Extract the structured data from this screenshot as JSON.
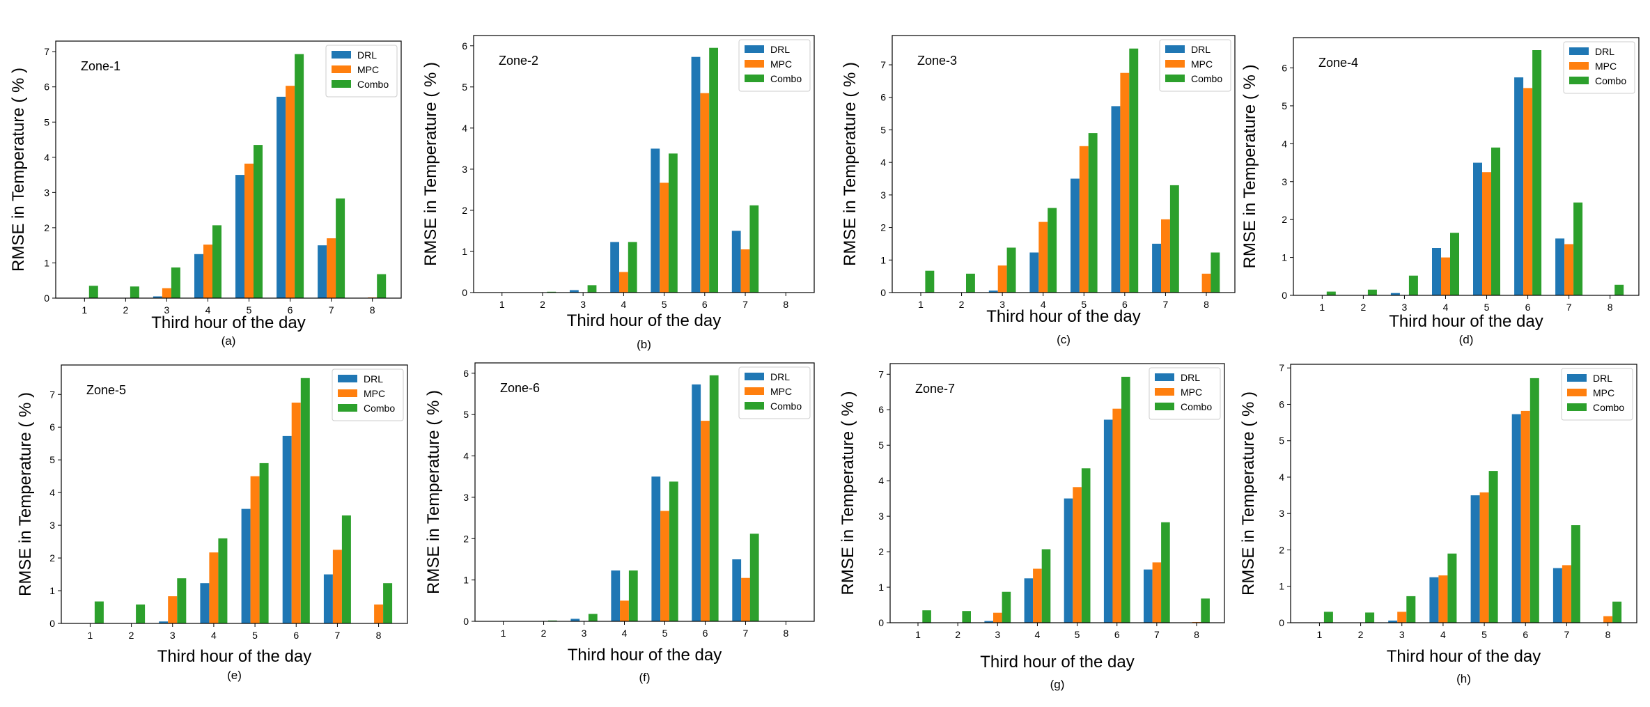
{
  "figure": {
    "series_names": [
      "DRL",
      "MPC",
      "Combo"
    ],
    "colors": {
      "DRL": "#1f77b4",
      "MPC": "#ff7f0e",
      "Combo": "#2ca02c"
    }
  },
  "chart_data": [
    {
      "type": "bar",
      "caption": "(a)",
      "zone_label": "Zone-1",
      "xlabel": "Third hour of the day",
      "ylabel": "RMSE in Temperature ( % )",
      "categories": [
        "1",
        "2",
        "3",
        "4",
        "5",
        "6",
        "7",
        "8"
      ],
      "ylim": [
        0,
        7.3
      ],
      "yticks": [
        0,
        1,
        2,
        3,
        4,
        5,
        6,
        7
      ],
      "legend": "top-right",
      "series": [
        {
          "name": "DRL",
          "values": [
            0,
            0,
            0.05,
            1.25,
            3.5,
            5.72,
            1.5,
            0
          ]
        },
        {
          "name": "MPC",
          "values": [
            0,
            0,
            0.28,
            1.52,
            3.82,
            6.03,
            1.7,
            0.02
          ]
        },
        {
          "name": "Combo",
          "values": [
            0.35,
            0.33,
            0.87,
            2.07,
            4.35,
            6.93,
            2.83,
            0.68
          ]
        }
      ]
    },
    {
      "type": "bar",
      "caption": "(b)",
      "zone_label": "Zone-2",
      "xlabel": "Third hour of the day",
      "ylabel": "RMSE in Temperature ( % )",
      "categories": [
        "1",
        "2",
        "3",
        "4",
        "5",
        "6",
        "7",
        "8"
      ],
      "ylim": [
        0,
        6.25
      ],
      "yticks": [
        0,
        1,
        2,
        3,
        4,
        5,
        6
      ],
      "legend": "top-right",
      "series": [
        {
          "name": "DRL",
          "values": [
            0,
            0,
            0.06,
            1.23,
            3.5,
            5.73,
            1.5,
            0
          ]
        },
        {
          "name": "MPC",
          "values": [
            0,
            0,
            0,
            0.5,
            2.67,
            4.85,
            1.05,
            0
          ]
        },
        {
          "name": "Combo",
          "values": [
            0,
            0.02,
            0.18,
            1.23,
            3.38,
            5.95,
            2.12,
            0
          ]
        }
      ]
    },
    {
      "type": "bar",
      "caption": "(c)",
      "zone_label": "Zone-3",
      "xlabel": "Third hour of the day",
      "ylabel": "RMSE in Temperature ( % )",
      "categories": [
        "1",
        "2",
        "3",
        "4",
        "5",
        "6",
        "7",
        "8"
      ],
      "ylim": [
        0,
        7.9
      ],
      "yticks": [
        0,
        1,
        2,
        3,
        4,
        5,
        6,
        7
      ],
      "legend": "top-right",
      "series": [
        {
          "name": "DRL",
          "values": [
            0,
            0,
            0.06,
            1.23,
            3.5,
            5.73,
            1.5,
            0
          ]
        },
        {
          "name": "MPC",
          "values": [
            0,
            0,
            0.83,
            2.17,
            4.5,
            6.75,
            2.25,
            0.58
          ]
        },
        {
          "name": "Combo",
          "values": [
            0.67,
            0.58,
            1.38,
            2.6,
            4.9,
            7.5,
            3.3,
            1.23
          ]
        }
      ]
    },
    {
      "type": "bar",
      "caption": "(d)",
      "zone_label": "Zone-4",
      "xlabel": "Third hour of the day",
      "ylabel": "RMSE in Temperature ( % )",
      "categories": [
        "1",
        "2",
        "3",
        "4",
        "5",
        "6",
        "7",
        "8"
      ],
      "ylim": [
        0,
        6.8
      ],
      "yticks": [
        0,
        1,
        2,
        3,
        4,
        5,
        6
      ],
      "legend": "top-right",
      "series": [
        {
          "name": "DRL",
          "values": [
            0,
            0,
            0.06,
            1.25,
            3.5,
            5.75,
            1.5,
            0
          ]
        },
        {
          "name": "MPC",
          "values": [
            0,
            0,
            0,
            1.0,
            3.25,
            5.47,
            1.35,
            0
          ]
        },
        {
          "name": "Combo",
          "values": [
            0.1,
            0.15,
            0.52,
            1.65,
            3.9,
            6.47,
            2.45,
            0.28
          ]
        }
      ]
    },
    {
      "type": "bar",
      "caption": "(e)",
      "zone_label": "Zone-5",
      "xlabel": "Third hour of the day",
      "ylabel": "RMSE in Temperature ( % )",
      "categories": [
        "1",
        "2",
        "3",
        "4",
        "5",
        "6",
        "7",
        "8"
      ],
      "ylim": [
        0,
        7.9
      ],
      "yticks": [
        0,
        1,
        2,
        3,
        4,
        5,
        6,
        7
      ],
      "legend": "top-right",
      "series": [
        {
          "name": "DRL",
          "values": [
            0,
            0,
            0.06,
            1.23,
            3.5,
            5.73,
            1.5,
            0
          ]
        },
        {
          "name": "MPC",
          "values": [
            0,
            0,
            0.83,
            2.17,
            4.5,
            6.75,
            2.25,
            0.58
          ]
        },
        {
          "name": "Combo",
          "values": [
            0.67,
            0.58,
            1.38,
            2.6,
            4.9,
            7.5,
            3.3,
            1.23
          ]
        }
      ]
    },
    {
      "type": "bar",
      "caption": "(f)",
      "zone_label": "Zone-6",
      "xlabel": "Third hour of the day",
      "ylabel": "RMSE in Temperature ( % )",
      "categories": [
        "1",
        "2",
        "3",
        "4",
        "5",
        "6",
        "7",
        "8"
      ],
      "ylim": [
        0,
        6.25
      ],
      "yticks": [
        0,
        1,
        2,
        3,
        4,
        5,
        6
      ],
      "legend": "top-right",
      "series": [
        {
          "name": "DRL",
          "values": [
            0,
            0,
            0.06,
            1.23,
            3.5,
            5.73,
            1.5,
            0
          ]
        },
        {
          "name": "MPC",
          "values": [
            0,
            0,
            0,
            0.5,
            2.67,
            4.85,
            1.05,
            0
          ]
        },
        {
          "name": "Combo",
          "values": [
            0,
            0.02,
            0.18,
            1.23,
            3.38,
            5.95,
            2.12,
            0
          ]
        }
      ]
    },
    {
      "type": "bar",
      "caption": "(g)",
      "zone_label": "Zone-7",
      "xlabel": "Third hour of the day",
      "ylabel": "RMSE in Temperature ( % )",
      "categories": [
        "1",
        "2",
        "3",
        "4",
        "5",
        "6",
        "7",
        "8"
      ],
      "ylim": [
        0,
        7.3
      ],
      "yticks": [
        0,
        1,
        2,
        3,
        4,
        5,
        6,
        7
      ],
      "legend": "top-right",
      "series": [
        {
          "name": "DRL",
          "values": [
            0,
            0,
            0.05,
            1.25,
            3.5,
            5.72,
            1.5,
            0
          ]
        },
        {
          "name": "MPC",
          "values": [
            0,
            0,
            0.28,
            1.52,
            3.82,
            6.03,
            1.7,
            0.02
          ]
        },
        {
          "name": "Combo",
          "values": [
            0.35,
            0.33,
            0.87,
            2.07,
            4.35,
            6.93,
            2.83,
            0.68
          ]
        }
      ]
    },
    {
      "type": "bar",
      "caption": "(h)",
      "zone_label": "",
      "xlabel": "Third hour of the day",
      "ylabel": "RMSE in Temperature ( % )",
      "categories": [
        "1",
        "2",
        "3",
        "4",
        "5",
        "6",
        "7",
        "8"
      ],
      "ylim": [
        0,
        7.1
      ],
      "yticks": [
        0,
        1,
        2,
        3,
        4,
        5,
        6,
        7
      ],
      "legend": "top-right",
      "series": [
        {
          "name": "DRL",
          "values": [
            0,
            0,
            0.06,
            1.25,
            3.5,
            5.73,
            1.5,
            0
          ]
        },
        {
          "name": "MPC",
          "values": [
            0,
            0,
            0.3,
            1.3,
            3.58,
            5.82,
            1.58,
            0.18
          ]
        },
        {
          "name": "Combo",
          "values": [
            0.3,
            0.28,
            0.73,
            1.9,
            4.17,
            6.72,
            2.68,
            0.58
          ]
        }
      ]
    }
  ]
}
